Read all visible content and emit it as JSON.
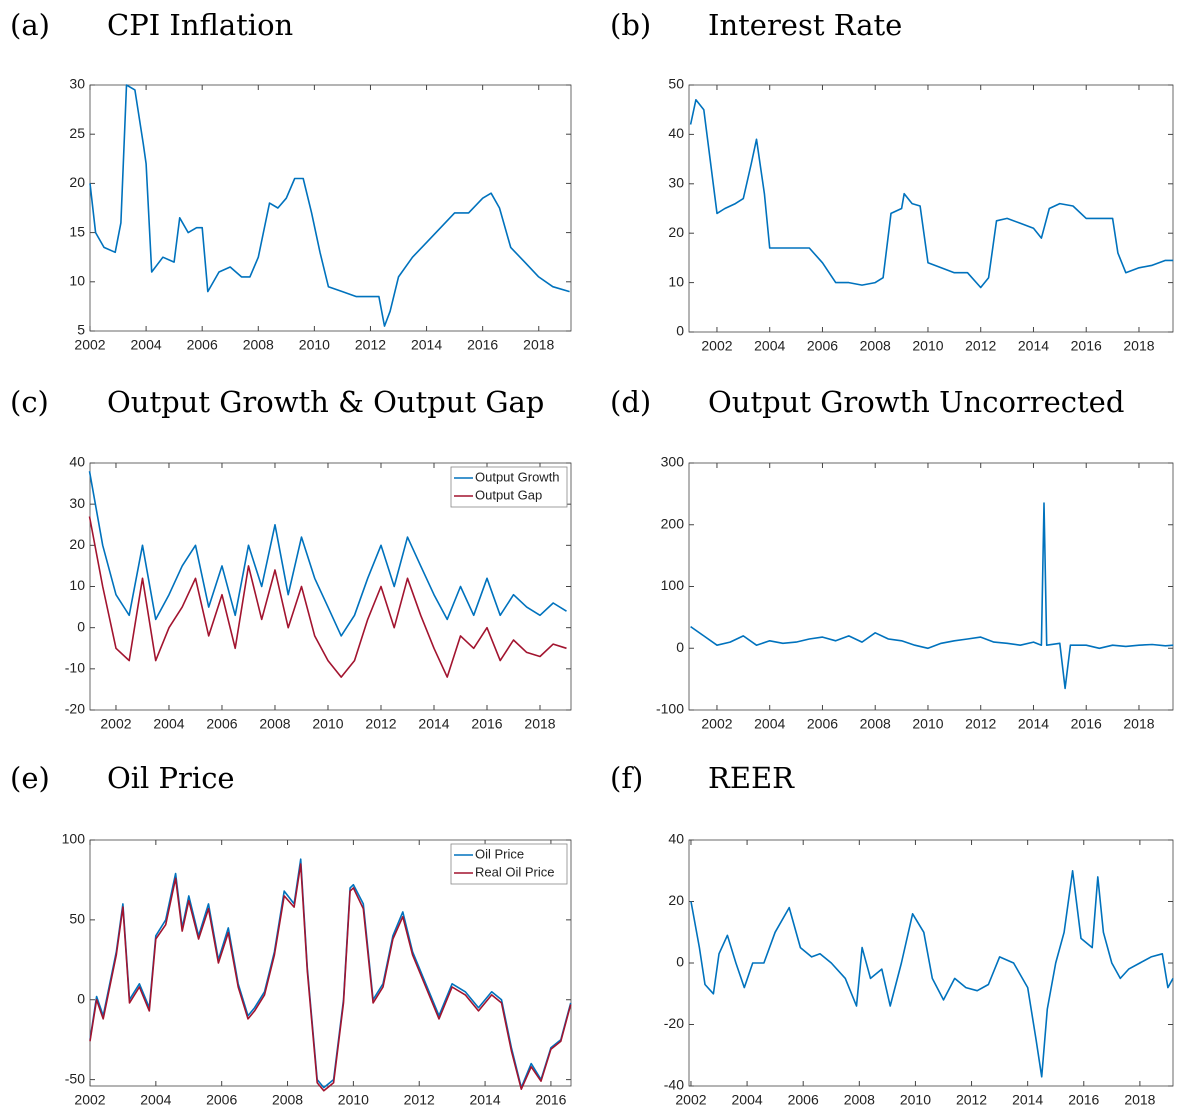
{
  "chart_data": [
    {
      "type": "line",
      "label": "(a)",
      "title": "CPI Inflation",
      "x": [
        2002,
        2002.2,
        2002.5,
        2002.9,
        2003.1,
        2003.3,
        2003.6,
        2003.9,
        2004.0,
        2004.2,
        2004.6,
        2005.0,
        2005.2,
        2005.5,
        2005.8,
        2006.0,
        2006.2,
        2006.6,
        2007.0,
        2007.4,
        2007.7,
        2008.0,
        2008.4,
        2008.7,
        2009.0,
        2009.3,
        2009.6,
        2009.9,
        2010.2,
        2010.5,
        2011.0,
        2011.5,
        2012.0,
        2012.3,
        2012.5,
        2012.7,
        2013.0,
        2013.5,
        2014.0,
        2014.5,
        2015.0,
        2015.5,
        2016.0,
        2016.3,
        2016.6,
        2017.0,
        2017.5,
        2018.0,
        2018.5,
        2019.1
      ],
      "series": [
        {
          "color": "#0072bd",
          "values": [
            20,
            15,
            13.5,
            13,
            16,
            30,
            29.5,
            24,
            22,
            11,
            12.5,
            12,
            16.5,
            15,
            15.5,
            15.5,
            9,
            11,
            11.5,
            10.5,
            10.5,
            12.5,
            18,
            17.5,
            18.5,
            20.5,
            20.5,
            17,
            13,
            9.5,
            9,
            8.5,
            8.5,
            8.5,
            5.5,
            7,
            10.5,
            12.5,
            14,
            15.5,
            17,
            17,
            18.5,
            19,
            17.5,
            13.5,
            12,
            10.5,
            9.5,
            9
          ]
        }
      ],
      "xlim": [
        2002,
        2019.15
      ],
      "ylim": [
        5,
        30
      ],
      "xticks": [
        2002,
        2004,
        2006,
        2008,
        2010,
        2012,
        2014,
        2016,
        2018
      ],
      "yticks": [
        5,
        10,
        15,
        20,
        25,
        30
      ]
    },
    {
      "type": "line",
      "label": "(b)",
      "title": "Interest Rate",
      "x": [
        2001,
        2001.2,
        2001.5,
        2002,
        2002.3,
        2002.7,
        2003,
        2003.3,
        2003.5,
        2003.8,
        2004,
        2004.5,
        2005,
        2005.5,
        2006,
        2006.5,
        2007,
        2007.5,
        2008,
        2008.3,
        2008.6,
        2009,
        2009.1,
        2009.4,
        2009.7,
        2010,
        2010.5,
        2011,
        2011.5,
        2012,
        2012.3,
        2012.6,
        2013,
        2013.5,
        2014,
        2014.3,
        2014.6,
        2015,
        2015.5,
        2016,
        2016.5,
        2017,
        2017.2,
        2017.5,
        2018,
        2018.5,
        2019,
        2019.3
      ],
      "series": [
        {
          "color": "#0072bd",
          "values": [
            42,
            47,
            45,
            24,
            25,
            26,
            27,
            34,
            39,
            28,
            17,
            17,
            17,
            17,
            14,
            10,
            10,
            9.5,
            10,
            11,
            24,
            25,
            28,
            26,
            25.5,
            14,
            13,
            12,
            12,
            9,
            11,
            22.5,
            23,
            22,
            21,
            19,
            25,
            26,
            25.5,
            23,
            23,
            23,
            16,
            12,
            13,
            13.5,
            14.5,
            14.5
          ]
        }
      ],
      "xlim": [
        2000.94,
        2019.29
      ],
      "ylim": [
        0,
        50
      ],
      "xticks": [
        2002,
        2004,
        2006,
        2008,
        2010,
        2012,
        2014,
        2016,
        2018
      ],
      "yticks": [
        0,
        10,
        20,
        30,
        40,
        50
      ]
    },
    {
      "type": "line",
      "label": "(c)",
      "title": "Output Growth & Output Gap",
      "x": [
        2001,
        2001.5,
        2002,
        2002.5,
        2003,
        2003.5,
        2004,
        2004.5,
        2005,
        2005.5,
        2006,
        2006.5,
        2007,
        2007.5,
        2008,
        2008.5,
        2009,
        2009.5,
        2010,
        2010.5,
        2011,
        2011.5,
        2012,
        2012.5,
        2013,
        2013.5,
        2014,
        2014.5,
        2015,
        2015.5,
        2016,
        2016.5,
        2017,
        2017.5,
        2018,
        2018.5,
        2019
      ],
      "series": [
        {
          "name": "Output Growth",
          "color": "#0072bd",
          "values": [
            38,
            20,
            8,
            3,
            20,
            2,
            8,
            15,
            20,
            5,
            15,
            3,
            20,
            10,
            25,
            8,
            22,
            12,
            5,
            -2,
            3,
            12,
            20,
            10,
            22,
            15,
            8,
            2,
            10,
            3,
            12,
            3,
            8,
            5,
            3,
            6,
            4
          ]
        },
        {
          "name": "Output Gap",
          "color": "#a2142f",
          "values": [
            27,
            10,
            -5,
            -8,
            12,
            -8,
            0,
            5,
            12,
            -2,
            8,
            -5,
            15,
            2,
            14,
            0,
            10,
            -2,
            -8,
            -12,
            -8,
            2,
            10,
            0,
            12,
            3,
            -5,
            -12,
            -2,
            -5,
            0,
            -8,
            -3,
            -6,
            -7,
            -4,
            -5
          ]
        }
      ],
      "xlim": [
        2001.02,
        2019.17
      ],
      "ylim": [
        -20,
        40
      ],
      "xticks": [
        2002,
        2004,
        2006,
        2008,
        2010,
        2012,
        2014,
        2016,
        2018
      ],
      "yticks": [
        -20,
        -10,
        0,
        10,
        20,
        30,
        40
      ],
      "legend": "northeast"
    },
    {
      "type": "line",
      "label": "(d)",
      "title": "Output Growth Uncorrected",
      "x": [
        2001,
        2001.5,
        2002,
        2002.5,
        2003,
        2003.5,
        2004,
        2004.5,
        2005,
        2005.5,
        2006,
        2006.5,
        2007,
        2007.5,
        2008,
        2008.5,
        2009,
        2009.5,
        2010,
        2010.5,
        2011,
        2011.5,
        2012,
        2012.5,
        2013,
        2013.5,
        2014,
        2014.3,
        2014.4,
        2014.5,
        2015,
        2015.2,
        2015.4,
        2016,
        2016.5,
        2017,
        2017.5,
        2018,
        2018.5,
        2019,
        2019.3
      ],
      "series": [
        {
          "color": "#0072bd",
          "values": [
            35,
            20,
            5,
            10,
            20,
            5,
            12,
            8,
            10,
            15,
            18,
            12,
            20,
            10,
            25,
            15,
            12,
            5,
            0,
            8,
            12,
            15,
            18,
            10,
            8,
            5,
            10,
            5,
            235,
            5,
            8,
            -65,
            5,
            5,
            0,
            5,
            3,
            5,
            6,
            4,
            5
          ]
        }
      ],
      "xlim": [
        2000.94,
        2019.29
      ],
      "ylim": [
        -100,
        300
      ],
      "xticks": [
        2002,
        2004,
        2006,
        2008,
        2010,
        2012,
        2014,
        2016,
        2018
      ],
      "yticks": [
        -100,
        0,
        100,
        200,
        300
      ]
    },
    {
      "type": "line",
      "label": "(e)",
      "title": "Oil Price",
      "x": [
        2002,
        2002.2,
        2002.4,
        2002.8,
        2003,
        2003.2,
        2003.5,
        2003.8,
        2004,
        2004.3,
        2004.6,
        2004.8,
        2005,
        2005.3,
        2005.6,
        2005.9,
        2006.2,
        2006.5,
        2006.8,
        2007,
        2007.3,
        2007.6,
        2007.9,
        2008.2,
        2008.4,
        2008.6,
        2008.9,
        2009.1,
        2009.4,
        2009.7,
        2009.9,
        2010,
        2010.3,
        2010.6,
        2010.9,
        2011.2,
        2011.5,
        2011.8,
        2012.2,
        2012.6,
        2013,
        2013.4,
        2013.8,
        2014.2,
        2014.5,
        2014.8,
        2015.1,
        2015.4,
        2015.7,
        2016,
        2016.3,
        2016.6
      ],
      "series": [
        {
          "name": "Oil Price",
          "color": "#0072bd",
          "values": [
            -25,
            2,
            -10,
            30,
            60,
            0,
            10,
            -5,
            40,
            50,
            79,
            45,
            65,
            40,
            60,
            25,
            45,
            10,
            -10,
            -5,
            5,
            30,
            68,
            60,
            88,
            20,
            -50,
            -55,
            -50,
            0,
            70,
            72,
            60,
            0,
            10,
            40,
            55,
            30,
            10,
            -10,
            10,
            5,
            -5,
            5,
            0,
            -30,
            -55,
            -40,
            -50,
            -30,
            -25,
            -2
          ]
        },
        {
          "name": "Real Oil Price",
          "color": "#a2142f",
          "values": [
            -26,
            0,
            -12,
            28,
            58,
            -2,
            8,
            -7,
            38,
            47,
            76,
            43,
            62,
            38,
            57,
            23,
            42,
            8,
            -12,
            -7,
            3,
            28,
            65,
            58,
            85,
            18,
            -52,
            -57,
            -52,
            -2,
            68,
            70,
            57,
            -2,
            8,
            38,
            52,
            28,
            8,
            -12,
            8,
            3,
            -7,
            3,
            -2,
            -32,
            -56,
            -42,
            -51,
            -31,
            -26,
            -3
          ]
        }
      ],
      "xlim": [
        2002,
        2016.61
      ],
      "ylim": [
        -54,
        100
      ],
      "xticks": [
        2002,
        2004,
        2006,
        2008,
        2010,
        2012,
        2014,
        2016
      ],
      "yticks": [
        -50,
        0,
        50,
        100
      ],
      "legend": "northeast"
    },
    {
      "type": "line",
      "label": "(f)",
      "title": "REER",
      "x": [
        2002,
        2002.3,
        2002.5,
        2002.8,
        2003,
        2003.3,
        2003.6,
        2003.9,
        2004.2,
        2004.6,
        2005,
        2005.5,
        2005.9,
        2006.3,
        2006.6,
        2007,
        2007.5,
        2007.9,
        2008.1,
        2008.4,
        2008.8,
        2009.1,
        2009.5,
        2009.9,
        2010.3,
        2010.6,
        2011,
        2011.4,
        2011.8,
        2012.2,
        2012.6,
        2013,
        2013.5,
        2014,
        2014.3,
        2014.5,
        2014.7,
        2015,
        2015.3,
        2015.6,
        2015.9,
        2016.3,
        2016.5,
        2016.7,
        2017,
        2017.3,
        2017.6,
        2018,
        2018.4,
        2018.8,
        2019,
        2019.18
      ],
      "series": [
        {
          "color": "#0072bd",
          "values": [
            20,
            5,
            -7,
            -10,
            3,
            9,
            0,
            -8,
            0,
            0,
            10,
            18,
            5,
            2,
            3,
            0,
            -5,
            -14,
            5,
            -5,
            -2,
            -14,
            0,
            16,
            10,
            -5,
            -12,
            -5,
            -8,
            -9,
            -7,
            2,
            0,
            -8,
            -25,
            -37,
            -15,
            0,
            10,
            30,
            8,
            5,
            28,
            10,
            0,
            -5,
            -2,
            0,
            2,
            3,
            -8,
            -5
          ]
        }
      ],
      "xlim": [
        2001.93,
        2019.18
      ],
      "ylim": [
        -40,
        40
      ],
      "xticks": [
        2002,
        2004,
        2006,
        2008,
        2010,
        2012,
        2014,
        2016,
        2018
      ],
      "yticks": [
        -40,
        -20,
        0,
        20,
        40
      ]
    }
  ]
}
